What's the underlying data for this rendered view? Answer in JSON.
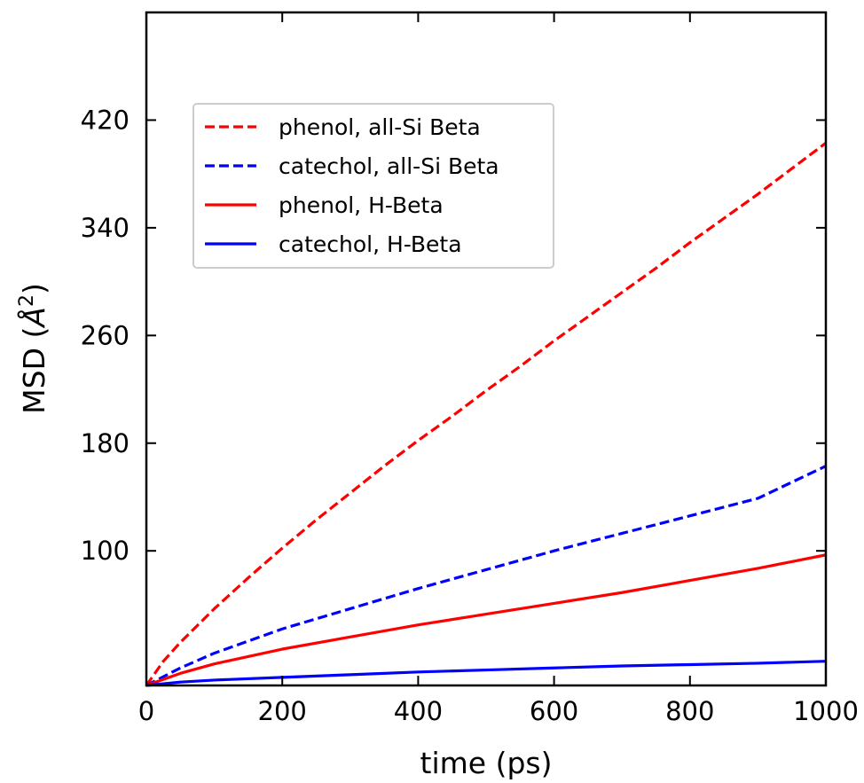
{
  "chart_data": {
    "type": "line",
    "xlabel": "time (ps)",
    "ylabel": "MSD (Å²)",
    "ylabel_text": "MSD (",
    "ylabel_unit": "Å",
    "ylabel_sup": "2",
    "ylabel_close": ")",
    "xlim": [
      0,
      1000
    ],
    "ylim": [
      0,
      500
    ],
    "xticks": [
      0,
      200,
      400,
      600,
      800,
      1000
    ],
    "yticks": [
      100,
      180,
      260,
      340,
      420
    ],
    "grid": false,
    "legend_position": "upper-left",
    "series": [
      {
        "name": "phenol, all-Si Beta",
        "color": "#ff0000",
        "style": "dashed",
        "x": [
          0,
          25,
          50,
          100,
          150,
          200,
          250,
          300,
          350,
          400,
          450,
          500,
          550,
          600,
          650,
          700,
          750,
          800,
          850,
          900,
          950,
          1000
        ],
        "y": [
          0,
          18,
          32,
          57,
          80,
          102,
          123,
          143,
          163,
          182,
          200,
          219,
          237,
          256,
          274,
          292,
          310,
          329,
          347,
          365,
          384,
          403
        ]
      },
      {
        "name": "catechol, all-Si Beta",
        "color": "#0000ff",
        "style": "dashed",
        "x": [
          0,
          50,
          100,
          150,
          200,
          300,
          400,
          500,
          600,
          700,
          800,
          900,
          1000
        ],
        "y": [
          0,
          13,
          24,
          33,
          42,
          57,
          72,
          86,
          100,
          113,
          126,
          139,
          163
        ]
      },
      {
        "name": "phenol, H-Beta",
        "color": "#ff0000",
        "style": "solid",
        "x": [
          0,
          50,
          100,
          200,
          300,
          400,
          500,
          600,
          700,
          800,
          900,
          1000
        ],
        "y": [
          0,
          9,
          16,
          27,
          36,
          45,
          53,
          61,
          69,
          78,
          87,
          97
        ]
      },
      {
        "name": "catechol, H-Beta",
        "color": "#0000ff",
        "style": "solid",
        "x": [
          0,
          50,
          100,
          200,
          300,
          400,
          500,
          600,
          700,
          800,
          900,
          1000
        ],
        "y": [
          0,
          2.5,
          4,
          6,
          8,
          10,
          11.5,
          13,
          14.5,
          15.5,
          16.5,
          18
        ]
      }
    ]
  }
}
